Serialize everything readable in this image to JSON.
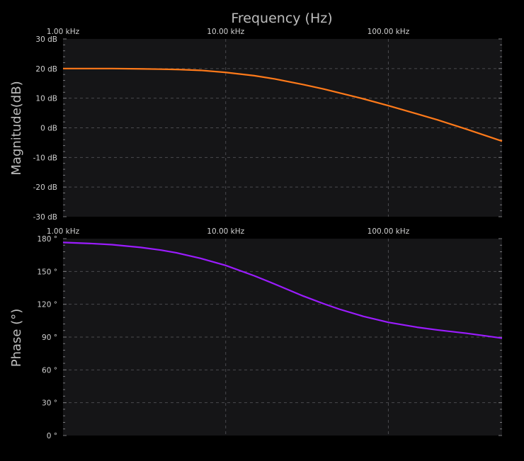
{
  "colors": {
    "background": "#000000",
    "plot_bg": "#151517",
    "grid": "#4a4a4e",
    "axis_text": "#d0d0d0",
    "magnitude_line": "#ff7a1a",
    "phase_line": "#9b1cff"
  },
  "chart_data": [
    {
      "type": "line",
      "id": "magnitude",
      "title": "Frequency (Hz)",
      "ylabel": "Magnitude(dB)",
      "x_scale": "log",
      "xlim": [
        1000,
        500000
      ],
      "ylim": [
        -30,
        30
      ],
      "x_ticks": [
        1000,
        10000,
        100000
      ],
      "x_tick_labels": [
        "1.00 kHz",
        "10.00 kHz",
        "100.00 kHz"
      ],
      "y_ticks": [
        30,
        20,
        10,
        0,
        -10,
        -20,
        -30
      ],
      "y_tick_labels": [
        "30 dB",
        "20 dB",
        "10 dB",
        "0 dB",
        "-10 dB",
        "-20 dB",
        "-30 dB"
      ],
      "grid": true,
      "series": [
        {
          "x": [
            1000,
            1500,
            2000,
            3000,
            4000,
            5000,
            7000,
            10000,
            15000,
            20000,
            30000,
            40000,
            50000,
            70000,
            100000,
            150000,
            200000,
            300000,
            400000,
            500000
          ],
          "y": [
            20.0,
            20.0,
            20.0,
            19.9,
            19.8,
            19.7,
            19.4,
            18.7,
            17.6,
            16.5,
            14.6,
            13.1,
            11.8,
            9.8,
            7.5,
            4.7,
            2.7,
            -0.4,
            -2.7,
            -4.5
          ]
        }
      ]
    },
    {
      "type": "line",
      "id": "phase",
      "title": "",
      "ylabel": "Phase (°)",
      "x_scale": "log",
      "xlim": [
        1000,
        500000
      ],
      "ylim": [
        0,
        180
      ],
      "x_ticks": [
        1000,
        10000,
        100000
      ],
      "x_tick_labels": [
        "1.00 kHz",
        "10.00 kHz",
        "100.00 kHz"
      ],
      "y_ticks": [
        180,
        150,
        120,
        90,
        60,
        30,
        0
      ],
      "y_tick_labels": [
        "180 °",
        "150 °",
        "120 °",
        "90 °",
        "60 °",
        "30 °",
        "0 °"
      ],
      "grid": true,
      "series": [
        {
          "x": [
            1000,
            1500,
            2000,
            3000,
            4000,
            5000,
            7000,
            10000,
            15000,
            20000,
            30000,
            40000,
            50000,
            70000,
            100000,
            150000,
            200000,
            300000,
            400000,
            500000
          ],
          "y": [
            176.5,
            175.5,
            174.5,
            172.0,
            169.5,
            167.0,
            162.0,
            155.5,
            146.0,
            138.5,
            127.5,
            120.5,
            115.5,
            109.0,
            103.5,
            99.0,
            96.5,
            93.5,
            91.0,
            89.0
          ]
        }
      ]
    }
  ]
}
